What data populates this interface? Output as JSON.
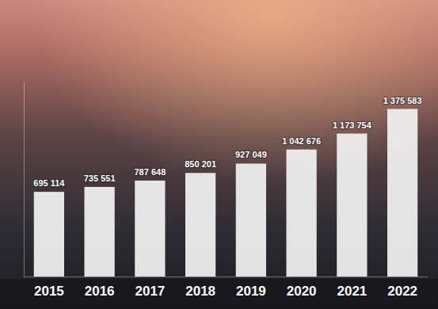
{
  "chart_data": {
    "type": "bar",
    "categories": [
      "2015",
      "2016",
      "2017",
      "2018",
      "2019",
      "2020",
      "2021",
      "2022"
    ],
    "values": [
      695114,
      735551,
      787648,
      850201,
      927049,
      1042676,
      1173754,
      1375583
    ],
    "value_labels": [
      "695 114",
      "735 551",
      "787 648",
      "850 201",
      "927 049",
      "1 042 676",
      "1 173 754",
      "1 375 583"
    ],
    "color": "#f2f2f2",
    "ylim": [
      0,
      1600000
    ],
    "data_labels": true,
    "tick_labels": "x",
    "grid": false
  }
}
